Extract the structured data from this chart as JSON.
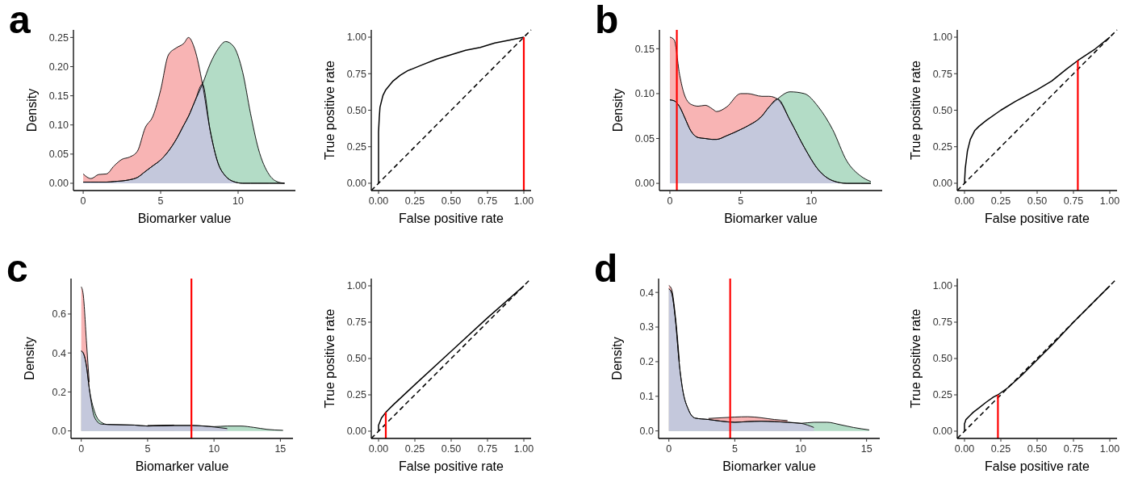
{
  "chart_data": [
    {
      "type": "area",
      "title": "a",
      "xlabel": "Biomarker value",
      "ylabel": "Density",
      "xlim": [
        -0.63,
        13.7
      ],
      "ylim": [
        -0.0125,
        0.263
      ],
      "xticks": [
        0,
        5,
        10
      ],
      "yticks": [
        {
          "value": 0,
          "label": "0.00"
        },
        {
          "value": 0.05,
          "label": "0.05"
        },
        {
          "value": 0.1,
          "label": "0.10"
        },
        {
          "value": 0.15,
          "label": "0.15"
        },
        {
          "value": 0.2,
          "label": "0.20"
        },
        {
          "value": 0.25,
          "label": "0.25"
        }
      ],
      "x": [
        0,
        0.5,
        1,
        1.5,
        2,
        2.5,
        3,
        3.5,
        4,
        4.5,
        5,
        5.5,
        6,
        6.5,
        6.8,
        7.2,
        7.7,
        8.2,
        8.7,
        9.2,
        9.7,
        10.3,
        10.8,
        11.3,
        12,
        12.5,
        13
      ],
      "series": [
        {
          "color": "#f8b4b4",
          "values": [
            0.016,
            0.008,
            0.015,
            0.016,
            0.03,
            0.041,
            0.045,
            0.055,
            0.095,
            0.115,
            0.16,
            0.22,
            0.232,
            0.24,
            0.25,
            0.23,
            0.17,
            0.09,
            0.035,
            0.012,
            0.003,
            0,
            0,
            0,
            0,
            0,
            0
          ]
        },
        {
          "color": "#b3dcc6",
          "values": [
            0.002,
            0.002,
            0.002,
            0.002,
            0.003,
            0.004,
            0.006,
            0.01,
            0.02,
            0.03,
            0.04,
            0.055,
            0.075,
            0.1,
            0.115,
            0.14,
            0.17,
            0.205,
            0.23,
            0.243,
            0.235,
            0.19,
            0.12,
            0.06,
            0.015,
            0.003,
            0
          ]
        },
        {
          "color": "#c4c8dc",
          "values": [
            0.002,
            0.002,
            0.002,
            0.002,
            0.003,
            0.004,
            0.006,
            0.01,
            0.02,
            0.03,
            0.04,
            0.055,
            0.075,
            0.1,
            0.115,
            0.14,
            0.17,
            0.09,
            0.035,
            0.012,
            0.003,
            0,
            0,
            0,
            0,
            0,
            0
          ]
        }
      ]
    },
    {
      "type": "line",
      "xlabel": "False positive rate",
      "ylabel": "True positive rate",
      "xlim": [
        -0.05,
        1.05
      ],
      "ylim": [
        -0.05,
        1.05
      ],
      "xticks": [
        {
          "value": 0,
          "label": "0.00"
        },
        {
          "value": 0.25,
          "label": "0.25"
        },
        {
          "value": 0.5,
          "label": "0.50"
        },
        {
          "value": 0.75,
          "label": "0.75"
        },
        {
          "value": 1,
          "label": "1.00"
        }
      ],
      "yticks": [
        {
          "value": 0,
          "label": "0.00"
        },
        {
          "value": 0.25,
          "label": "0.25"
        },
        {
          "value": 0.5,
          "label": "0.50"
        },
        {
          "value": 0.75,
          "label": "0.75"
        },
        {
          "value": 1,
          "label": "1.00"
        }
      ],
      "series": [
        {
          "color": "#000000",
          "line_style": "dashed",
          "x": [
            -0.05,
            1.05
          ],
          "values": [
            -0.05,
            1.05
          ]
        },
        {
          "color": "#000000",
          "line_style": "solid",
          "x": [
            0,
            0,
            0.005,
            0.01,
            0.03,
            0.05,
            0.1,
            0.15,
            0.2,
            0.3,
            0.4,
            0.5,
            0.6,
            0.7,
            0.8,
            0.9,
            1
          ],
          "values": [
            0,
            0.35,
            0.45,
            0.52,
            0.6,
            0.64,
            0.7,
            0.74,
            0.77,
            0.81,
            0.85,
            0.88,
            0.91,
            0.93,
            0.96,
            0.98,
            1
          ]
        },
        {
          "color": "#ff0000",
          "line_style": "solid",
          "x": [
            1,
            1
          ],
          "values": [
            -0.05,
            1
          ]
        }
      ]
    },
    {
      "type": "area",
      "title": "b",
      "xlabel": "Biomarker value",
      "ylabel": "Density",
      "xlim": [
        -0.74,
        15
      ],
      "ylim": [
        -0.008,
        0.171
      ],
      "xticks": [
        0,
        5,
        10
      ],
      "yticks": [
        {
          "value": 0,
          "label": "0.00"
        },
        {
          "value": 0.05,
          "label": "0.05"
        },
        {
          "value": 0.1,
          "label": "0.10"
        },
        {
          "value": 0.15,
          "label": "0.15"
        }
      ],
      "ref_lines": [
        {
          "axis": "x",
          "value": 0.49,
          "color": "#ff0000"
        }
      ],
      "x": [
        0,
        0.3,
        0.7,
        1,
        1.5,
        2,
        2.5,
        3,
        3.3,
        4,
        5,
        5.5,
        6.5,
        7,
        7.6,
        8.5,
        9.5,
        10.5,
        11.5,
        12.5,
        13.5,
        14.2
      ],
      "series": [
        {
          "color": "#f8b4b4",
          "values": [
            0.163,
            0.16,
            0.12,
            0.1,
            0.088,
            0.086,
            0.087,
            0.083,
            0.08,
            0.085,
            0.1,
            0.1,
            0.097,
            0.097,
            0.094,
            0.07,
            0.04,
            0.015,
            0.003,
            0,
            0,
            0
          ]
        },
        {
          "color": "#b3dcc6",
          "values": [
            0.093,
            0.092,
            0.085,
            0.075,
            0.058,
            0.051,
            0.05,
            0.049,
            0.049,
            0.053,
            0.06,
            0.064,
            0.075,
            0.085,
            0.094,
            0.102,
            0.1,
            0.085,
            0.06,
            0.025,
            0.008,
            0.002
          ]
        },
        {
          "color": "#c4c8dc",
          "values": [
            0.093,
            0.092,
            0.085,
            0.075,
            0.058,
            0.051,
            0.05,
            0.049,
            0.049,
            0.053,
            0.06,
            0.064,
            0.075,
            0.085,
            0.094,
            0.07,
            0.04,
            0.015,
            0.003,
            0,
            0,
            0
          ]
        }
      ]
    },
    {
      "type": "line",
      "xlabel": "False positive rate",
      "ylabel": "True positive rate",
      "xlim": [
        -0.05,
        1.05
      ],
      "ylim": [
        -0.05,
        1.05
      ],
      "xticks": [
        {
          "value": 0,
          "label": "0.00"
        },
        {
          "value": 0.25,
          "label": "0.25"
        },
        {
          "value": 0.5,
          "label": "0.50"
        },
        {
          "value": 0.75,
          "label": "0.75"
        },
        {
          "value": 1,
          "label": "1.00"
        }
      ],
      "yticks": [
        {
          "value": 0,
          "label": "0.00"
        },
        {
          "value": 0.25,
          "label": "0.25"
        },
        {
          "value": 0.5,
          "label": "0.50"
        },
        {
          "value": 0.75,
          "label": "0.75"
        },
        {
          "value": 1,
          "label": "1.00"
        }
      ],
      "series": [
        {
          "color": "#000000",
          "line_style": "dashed",
          "x": [
            -0.05,
            1.05
          ],
          "values": [
            -0.05,
            1.05
          ]
        },
        {
          "color": "#000000",
          "line_style": "solid",
          "x": [
            0,
            0.005,
            0.02,
            0.04,
            0.07,
            0.1,
            0.15,
            0.25,
            0.35,
            0.5,
            0.6,
            0.7,
            0.78,
            0.9,
            1
          ],
          "values": [
            0,
            0.1,
            0.22,
            0.3,
            0.36,
            0.39,
            0.43,
            0.5,
            0.56,
            0.64,
            0.7,
            0.78,
            0.84,
            0.92,
            1
          ]
        },
        {
          "color": "#ff0000",
          "line_style": "solid",
          "x": [
            0.78,
            0.78
          ],
          "values": [
            -0.05,
            0.84
          ]
        }
      ]
    },
    {
      "type": "area",
      "title": "c",
      "xlabel": "Biomarker value",
      "ylabel": "Density",
      "xlim": [
        -0.77,
        15.95
      ],
      "ylim": [
        -0.0386,
        0.782
      ],
      "xticks": [
        0,
        5,
        10,
        15
      ],
      "yticks": [
        {
          "value": 0,
          "label": "0.0"
        },
        {
          "value": 0.2,
          "label": "0.2"
        },
        {
          "value": 0.4,
          "label": "0.4"
        },
        {
          "value": 0.6,
          "label": "0.6"
        }
      ],
      "ref_lines": [
        {
          "axis": "x",
          "value": 8.3,
          "color": "#ff0000"
        }
      ],
      "x": [
        0,
        0.15,
        0.4,
        0.6,
        1,
        1.5,
        2,
        4,
        5,
        7,
        8.4,
        10,
        11,
        12,
        13,
        14,
        15.2
      ],
      "series": [
        {
          "color": "#f8b4b4",
          "values": [
            0.74,
            0.7,
            0.45,
            0.25,
            null,
            null,
            null,
            null,
            0.028,
            0.03,
            null,
            null,
            null,
            null,
            null,
            null,
            null
          ]
        },
        {
          "color": "#b3dcc6",
          "values": [
            0.41,
            0.4,
            0.33,
            0.22,
            0.1,
            0.045,
            0.033,
            0.03,
            0.025,
            0.028,
            0.028,
            0.022,
            0.025,
            0.025,
            0.018,
            0.008,
            0.003
          ]
        },
        {
          "color": "#c4c8dc",
          "values": [
            0.41,
            0.4,
            0.33,
            0.22,
            0.07,
            0.035,
            0.033,
            0.03,
            0.025,
            0.028,
            0.028,
            0.02,
            0.012,
            null,
            null,
            null,
            null
          ]
        }
      ]
    },
    {
      "type": "line",
      "xlabel": "False positive rate",
      "ylabel": "True positive rate",
      "xlim": [
        -0.05,
        1.05
      ],
      "ylim": [
        -0.05,
        1.05
      ],
      "xticks": [
        {
          "value": 0,
          "label": "0.00"
        },
        {
          "value": 0.25,
          "label": "0.25"
        },
        {
          "value": 0.5,
          "label": "0.50"
        },
        {
          "value": 0.75,
          "label": "0.75"
        },
        {
          "value": 1,
          "label": "1.00"
        }
      ],
      "yticks": [
        {
          "value": 0,
          "label": "0.00"
        },
        {
          "value": 0.25,
          "label": "0.25"
        },
        {
          "value": 0.5,
          "label": "0.50"
        },
        {
          "value": 0.75,
          "label": "0.75"
        },
        {
          "value": 1,
          "label": "1.00"
        }
      ],
      "series": [
        {
          "color": "#000000",
          "line_style": "dashed",
          "x": [
            -0.05,
            1.05
          ],
          "values": [
            -0.05,
            1.05
          ]
        },
        {
          "color": "#000000",
          "line_style": "solid",
          "x": [
            0,
            0,
            0.02,
            0.05,
            0.1,
            0.25,
            0.5,
            0.75,
            1
          ],
          "values": [
            0,
            0.04,
            0.09,
            0.13,
            0.18,
            0.32,
            0.55,
            0.78,
            1
          ]
        },
        {
          "color": "#ff0000",
          "line_style": "solid",
          "x": [
            0.05,
            0.05
          ],
          "values": [
            -0.05,
            0.13
          ]
        }
      ]
    },
    {
      "type": "area",
      "title": "d",
      "xlabel": "Biomarker value",
      "ylabel": "Density",
      "xlim": [
        -0.78,
        16
      ],
      "ylim": [
        -0.0217,
        0.44
      ],
      "xticks": [
        0,
        5,
        10,
        15
      ],
      "yticks": [
        {
          "value": 0,
          "label": "0.0"
        },
        {
          "value": 0.1,
          "label": "0.1"
        },
        {
          "value": 0.2,
          "label": "0.2"
        },
        {
          "value": 0.3,
          "label": "0.3"
        },
        {
          "value": 0.4,
          "label": "0.4"
        }
      ],
      "ref_lines": [
        {
          "axis": "x",
          "value": 4.65,
          "color": "#ff0000"
        }
      ],
      "x": [
        0,
        0.2,
        0.5,
        0.8,
        1,
        1.5,
        2,
        3,
        4,
        5,
        6,
        7,
        8,
        9,
        10,
        11,
        12,
        13,
        14,
        15.2
      ],
      "series": [
        {
          "color": "#f8b4b4",
          "values": [
            0.42,
            0.41,
            0.33,
            0.2,
            null,
            null,
            null,
            0.036,
            0.038,
            0.04,
            0.041,
            0.038,
            0.033,
            0.03,
            null,
            null,
            null,
            null,
            null,
            null
          ]
        },
        {
          "color": "#b3dcc6",
          "values": [
            0.41,
            0.4,
            0.32,
            0.19,
            0.13,
            0.06,
            0.037,
            0.033,
            0.028,
            0.025,
            0.027,
            0.028,
            0.027,
            0.025,
            0.022,
            0.025,
            0.025,
            0.018,
            0.01,
            0.003
          ]
        },
        {
          "color": "#c4c8dc",
          "values": [
            0.41,
            0.4,
            0.32,
            0.19,
            0.13,
            0.06,
            0.037,
            0.033,
            0.028,
            0.025,
            0.027,
            0.028,
            0.027,
            0.025,
            0.022,
            0.01,
            null,
            null,
            null,
            null
          ]
        }
      ]
    },
    {
      "type": "line",
      "xlabel": "False positive rate",
      "ylabel": "True positive rate",
      "xlim": [
        -0.05,
        1.05
      ],
      "ylim": [
        -0.05,
        1.05
      ],
      "xticks": [
        {
          "value": 0,
          "label": "0.00"
        },
        {
          "value": 0.25,
          "label": "0.25"
        },
        {
          "value": 0.5,
          "label": "0.50"
        },
        {
          "value": 0.75,
          "label": "0.75"
        },
        {
          "value": 1,
          "label": "1.00"
        }
      ],
      "yticks": [
        {
          "value": 0,
          "label": "0.00"
        },
        {
          "value": 0.25,
          "label": "0.25"
        },
        {
          "value": 0.5,
          "label": "0.50"
        },
        {
          "value": 0.75,
          "label": "0.75"
        },
        {
          "value": 1,
          "label": "1.00"
        }
      ],
      "series": [
        {
          "color": "#000000",
          "line_style": "dashed",
          "x": [
            -0.05,
            1.05
          ],
          "values": [
            -0.05,
            1.05
          ]
        },
        {
          "color": "#000000",
          "line_style": "solid",
          "x": [
            0,
            0,
            0.01,
            0.03,
            0.06,
            0.1,
            0.15,
            0.2,
            0.23,
            0.3,
            0.4,
            0.5,
            0.6,
            0.75,
            0.9,
            1
          ],
          "values": [
            0,
            0.05,
            0.08,
            0.1,
            0.13,
            0.16,
            0.2,
            0.235,
            0.25,
            0.3,
            0.39,
            0.49,
            0.59,
            0.75,
            0.9,
            1
          ]
        },
        {
          "color": "#ff0000",
          "line_style": "solid",
          "x": [
            0.23,
            0.23
          ],
          "values": [
            -0.05,
            0.25
          ]
        }
      ]
    }
  ]
}
